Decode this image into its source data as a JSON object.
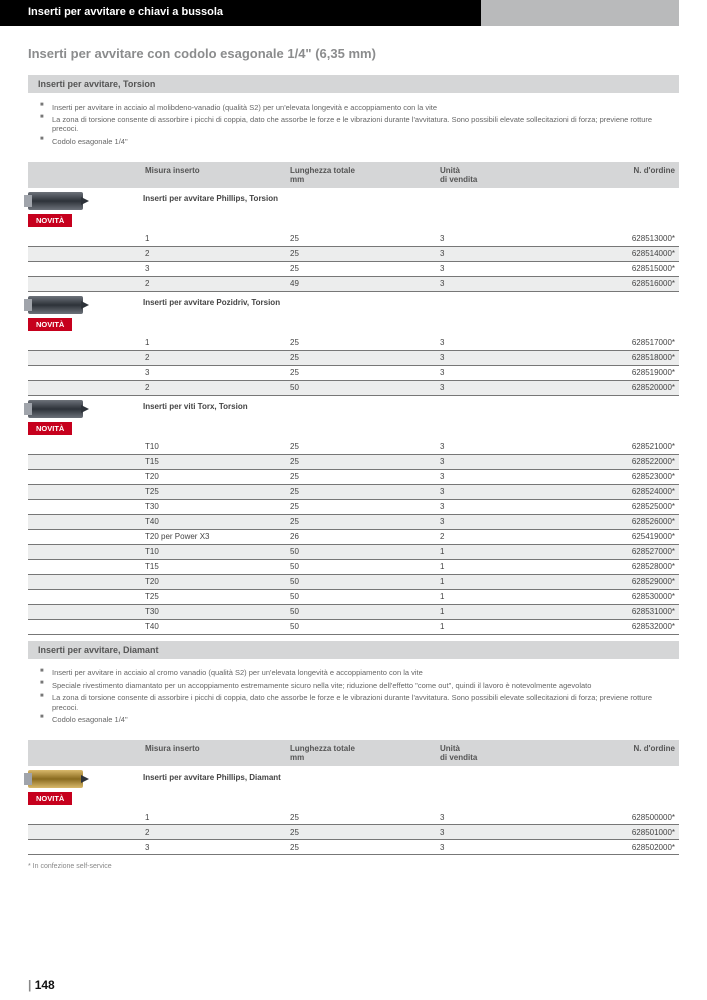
{
  "header": "Inserti per avvitare e chiavi a bussola",
  "subtitle": "Inserti per avvitare con codolo esagonale 1/4\" (6,35 mm)",
  "section1_title": "Inserti per avvitare, Torsion",
  "bullets1": [
    "Inserti per avvitare in acciaio al molibdeno-vanadio (qualità S2) per un'elevata longevità e accoppiamento con la vite",
    "La zona di torsione consente di assorbire i picchi di coppia, dato che assorbe le forze e le vibrazioni durante l'avvitatura. Sono possibili elevate sollecitazioni di forza; previene rotture precoci.",
    "Codolo esagonale 1/4\""
  ],
  "table_headers": {
    "c0": "",
    "c1": "Misura inserto",
    "c2": "Lunghezza totale\nmm",
    "c3": "Unità\ndi vendita",
    "c4": "N. d'ordine"
  },
  "groups1": [
    {
      "title": "Inserti per avvitare Phillips, Torsion",
      "bit_class": "",
      "rows": [
        {
          "size": "1",
          "len": "25",
          "unit": "3",
          "order": "628513000*"
        },
        {
          "size": "2",
          "len": "25",
          "unit": "3",
          "order": "628514000*"
        },
        {
          "size": "3",
          "len": "25",
          "unit": "3",
          "order": "628515000*"
        },
        {
          "size": "2",
          "len": "49",
          "unit": "3",
          "order": "628516000*"
        }
      ]
    },
    {
      "title": "Inserti per avvitare Pozidriv, Torsion",
      "bit_class": "",
      "rows": [
        {
          "size": "1",
          "len": "25",
          "unit": "3",
          "order": "628517000*"
        },
        {
          "size": "2",
          "len": "25",
          "unit": "3",
          "order": "628518000*"
        },
        {
          "size": "3",
          "len": "25",
          "unit": "3",
          "order": "628519000*"
        },
        {
          "size": "2",
          "len": "50",
          "unit": "3",
          "order": "628520000*"
        }
      ]
    },
    {
      "title": "Inserti per viti Torx, Torsion",
      "bit_class": "",
      "rows": [
        {
          "size": "T10",
          "len": "25",
          "unit": "3",
          "order": "628521000*"
        },
        {
          "size": "T15",
          "len": "25",
          "unit": "3",
          "order": "628522000*"
        },
        {
          "size": "T20",
          "len": "25",
          "unit": "3",
          "order": "628523000*"
        },
        {
          "size": "T25",
          "len": "25",
          "unit": "3",
          "order": "628524000*"
        },
        {
          "size": "T30",
          "len": "25",
          "unit": "3",
          "order": "628525000*"
        },
        {
          "size": "T40",
          "len": "25",
          "unit": "3",
          "order": "628526000*"
        },
        {
          "size": "T20 per Power X3",
          "len": "26",
          "unit": "2",
          "order": "625419000*"
        },
        {
          "size": "T10",
          "len": "50",
          "unit": "1",
          "order": "628527000*"
        },
        {
          "size": "T15",
          "len": "50",
          "unit": "1",
          "order": "628528000*"
        },
        {
          "size": "T20",
          "len": "50",
          "unit": "1",
          "order": "628529000*"
        },
        {
          "size": "T25",
          "len": "50",
          "unit": "1",
          "order": "628530000*"
        },
        {
          "size": "T30",
          "len": "50",
          "unit": "1",
          "order": "628531000*"
        },
        {
          "size": "T40",
          "len": "50",
          "unit": "1",
          "order": "628532000*"
        }
      ]
    }
  ],
  "section2_title": "Inserti per avvitare, Diamant",
  "bullets2": [
    "Inserti per avvitare in acciaio al cromo vanadio (qualità S2) per un'elevata longevità e accoppiamento con la vite",
    "Speciale rivestimento diamantato per un accoppiamento estremamente sicuro nella vite; riduzione dell'effetto \"come out\", quindi il lavoro è notevolmente agevolato",
    "La zona di torsione consente di assorbire i picchi di coppia, dato che assorbe le forze e le vibrazioni durante l'avvitatura. Sono possibili elevate sollecitazioni di forza; previene rotture precoci.",
    "Codolo esagonale 1/4\""
  ],
  "groups2": [
    {
      "title": "Inserti per avvitare Phillips, Diamant",
      "bit_class": "bit-gold",
      "rows": [
        {
          "size": "1",
          "len": "25",
          "unit": "3",
          "order": "628500000*"
        },
        {
          "size": "2",
          "len": "25",
          "unit": "3",
          "order": "628501000*"
        },
        {
          "size": "3",
          "len": "25",
          "unit": "3",
          "order": "628502000*"
        }
      ]
    }
  ],
  "novita": "NOVITÀ",
  "footnote": "* In confezione self-service",
  "page": "148"
}
